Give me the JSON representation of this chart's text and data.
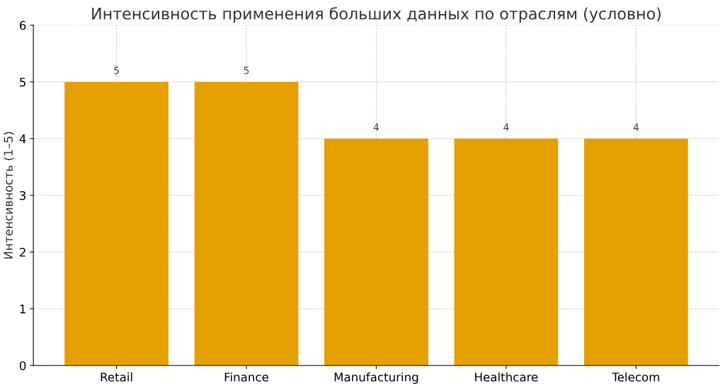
{
  "chart_data": {
    "type": "bar",
    "title": "Интенсивность применения больших данных по отраслям (условно)",
    "ylabel": "Интенсивность (1–5)",
    "categories": [
      "Retail",
      "Finance",
      "Manufacturing",
      "Healthcare",
      "Telecom"
    ],
    "values": [
      5,
      5,
      4,
      4,
      4
    ],
    "color": "#e5a000",
    "ylim": [
      0,
      6
    ],
    "yticks": [
      0,
      1,
      2,
      3,
      4,
      5,
      6
    ],
    "grid": true,
    "data_labels": true
  }
}
